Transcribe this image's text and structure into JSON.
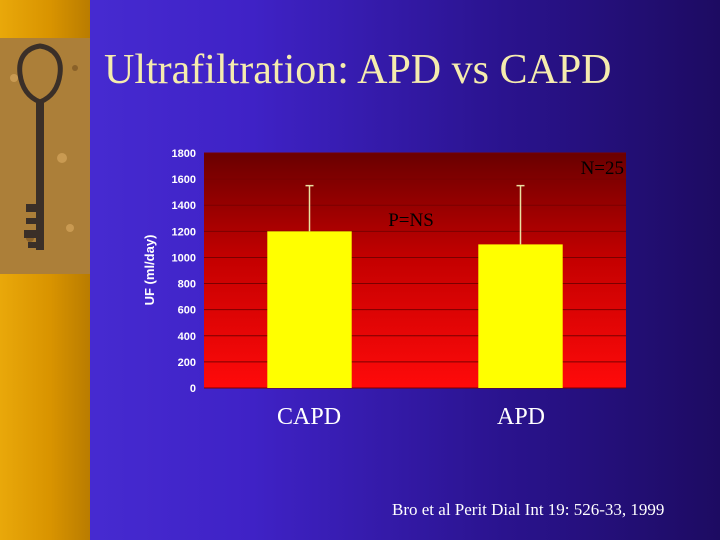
{
  "slide": {
    "title": "Ultrafiltration: APD vs CAPD",
    "citation": "Bro et al Perit Dial Int 19: 526-33, 1999",
    "colors": {
      "background": "#3f22c6",
      "sidebar": "#d99400",
      "title": "#f5ecae",
      "bar": "#ffff00"
    }
  },
  "chart_data": {
    "type": "bar",
    "categories": [
      "CAPD",
      "APD"
    ],
    "values": [
      1200,
      1100
    ],
    "error_upper": [
      1550,
      1550
    ],
    "ylabel": "UF (ml/day)",
    "ylim": [
      0,
      1800
    ],
    "yticks": [
      0,
      200,
      400,
      600,
      800,
      1000,
      1200,
      1400,
      1600,
      1800
    ],
    "annotations": [
      "N=25",
      "P=NS"
    ],
    "grid": true
  }
}
